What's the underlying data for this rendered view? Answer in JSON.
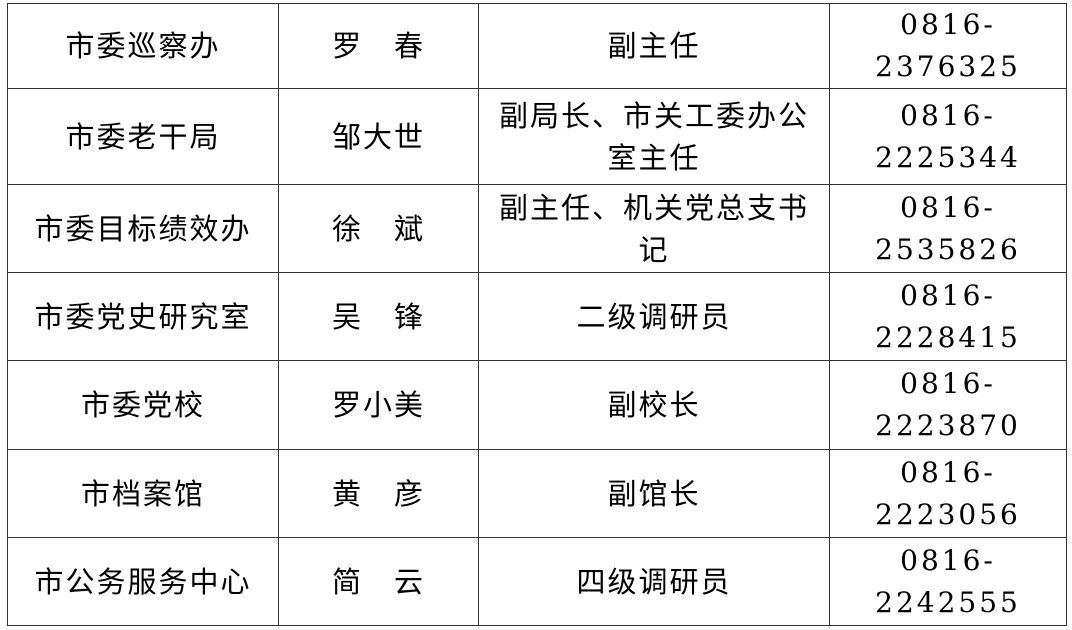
{
  "rows": [
    {
      "unit": "市委巡察办",
      "name": "罗　春",
      "position": "副主任",
      "phone": "0816-2376325"
    },
    {
      "unit": "市委老干局",
      "name": "邹大世",
      "position": "副局长、市关工委办公室主任",
      "phone": "0816-2225344"
    },
    {
      "unit": "市委目标绩效办",
      "name": "徐　斌",
      "position": "副主任、机关党总支书记",
      "phone": "0816-2535826"
    },
    {
      "unit": "市委党史研究室",
      "name": "吴　锋",
      "position": "二级调研员",
      "phone": "0816-2228415"
    },
    {
      "unit": "市委党校",
      "name": "罗小美",
      "position": "副校长",
      "phone": "0816-2223870"
    },
    {
      "unit": "市档案馆",
      "name": "黄　彦",
      "position": "副馆长",
      "phone": "0816-2223056"
    },
    {
      "unit": "市公务服务中心",
      "name": "简　云",
      "position": "四级调研员",
      "phone": "0816-2242555"
    }
  ]
}
